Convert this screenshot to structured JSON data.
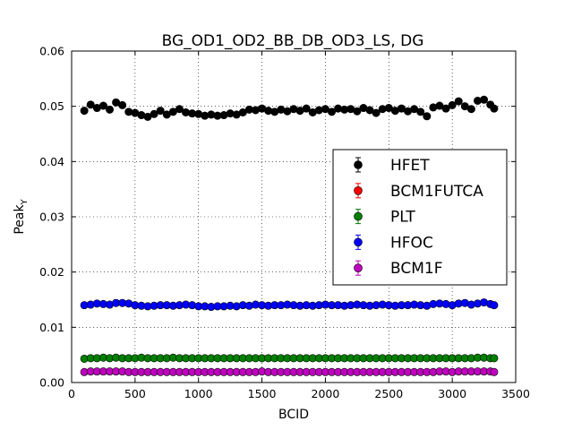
{
  "chart_data": {
    "type": "scatter",
    "title": "BG_OD1_OD2_BB_DB_OD3_LS, DG",
    "xlabel": "BCID",
    "ylabel": "Peak",
    "ylabel_subscript": "Y",
    "xlim": [
      0,
      3500
    ],
    "ylim": [
      0,
      0.06
    ],
    "xticks": [
      "0",
      "500",
      "1000",
      "1500",
      "2000",
      "2500",
      "3000",
      "3500"
    ],
    "xtick_values": [
      0,
      500,
      1000,
      1500,
      2000,
      2500,
      3000,
      3500
    ],
    "yticks": [
      "0.00",
      "0.01",
      "0.02",
      "0.03",
      "0.04",
      "0.05",
      "0.06"
    ],
    "ytick_values": [
      0,
      0.01,
      0.02,
      0.03,
      0.04,
      0.05,
      0.06
    ],
    "grid": true,
    "legend_position": "center-right",
    "x": [
      100,
      150,
      200,
      250,
      300,
      350,
      400,
      450,
      500,
      550,
      600,
      650,
      700,
      750,
      800,
      850,
      900,
      950,
      1000,
      1050,
      1100,
      1150,
      1200,
      1250,
      1300,
      1350,
      1400,
      1450,
      1500,
      1550,
      1600,
      1650,
      1700,
      1750,
      1800,
      1850,
      1900,
      1950,
      2000,
      2050,
      2100,
      2150,
      2200,
      2250,
      2300,
      2350,
      2400,
      2450,
      2500,
      2550,
      2600,
      2650,
      2700,
      2750,
      2800,
      2850,
      2900,
      2950,
      3000,
      3050,
      3100,
      3150,
      3200,
      3250,
      3300,
      3330
    ],
    "series": [
      {
        "name": "HFET",
        "color": "#000000",
        "values": [
          0.0492,
          0.0503,
          0.0497,
          0.0501,
          0.0494,
          0.0507,
          0.0502,
          0.049,
          0.0488,
          0.0484,
          0.0481,
          0.0486,
          0.0492,
          0.0485,
          0.049,
          0.0495,
          0.0489,
          0.0487,
          0.0486,
          0.0483,
          0.0485,
          0.0483,
          0.0484,
          0.0487,
          0.0485,
          0.0489,
          0.0494,
          0.0493,
          0.0496,
          0.0492,
          0.049,
          0.0494,
          0.0491,
          0.0495,
          0.0492,
          0.0496,
          0.0489,
          0.0493,
          0.0495,
          0.049,
          0.0496,
          0.0494,
          0.0495,
          0.0491,
          0.0497,
          0.0493,
          0.0488,
          0.0495,
          0.0497,
          0.0492,
          0.0496,
          0.0491,
          0.0495,
          0.049,
          0.0482,
          0.0498,
          0.0501,
          0.0496,
          0.0502,
          0.0509,
          0.05,
          0.0495,
          0.051,
          0.0512,
          0.0503,
          0.0496
        ]
      },
      {
        "name": "BCM1FUTCA",
        "color": "#ff0000",
        "values": []
      },
      {
        "name": "PLT",
        "color": "#008000",
        "values": [
          0.0043,
          0.0044,
          0.0044,
          0.0045,
          0.0044,
          0.0045,
          0.0044,
          0.0044,
          0.0044,
          0.0045,
          0.0044,
          0.0044,
          0.0044,
          0.0044,
          0.0045,
          0.0044,
          0.0044,
          0.0044,
          0.0044,
          0.0044,
          0.0044,
          0.0044,
          0.0044,
          0.0044,
          0.0044,
          0.0044,
          0.0044,
          0.0044,
          0.0044,
          0.0044,
          0.0044,
          0.0044,
          0.0044,
          0.0044,
          0.0044,
          0.0044,
          0.0044,
          0.0044,
          0.0044,
          0.0044,
          0.0044,
          0.0044,
          0.0044,
          0.0044,
          0.0044,
          0.0044,
          0.0044,
          0.0044,
          0.0044,
          0.0044,
          0.0044,
          0.0044,
          0.0044,
          0.0044,
          0.0044,
          0.0044,
          0.0044,
          0.0044,
          0.0044,
          0.0044,
          0.0044,
          0.0044,
          0.0045,
          0.0045,
          0.0044,
          0.0044
        ]
      },
      {
        "name": "HFOC",
        "color": "#0000ff",
        "values": [
          0.014,
          0.0141,
          0.0143,
          0.0142,
          0.0141,
          0.0144,
          0.0144,
          0.0143,
          0.014,
          0.0139,
          0.0138,
          0.0139,
          0.014,
          0.014,
          0.0139,
          0.014,
          0.0141,
          0.014,
          0.0138,
          0.0138,
          0.0137,
          0.0138,
          0.0138,
          0.0139,
          0.0138,
          0.014,
          0.0139,
          0.0141,
          0.014,
          0.0139,
          0.014,
          0.014,
          0.0141,
          0.014,
          0.0139,
          0.014,
          0.0139,
          0.014,
          0.0141,
          0.014,
          0.014,
          0.0139,
          0.014,
          0.0141,
          0.014,
          0.0139,
          0.014,
          0.0141,
          0.014,
          0.0139,
          0.014,
          0.014,
          0.0141,
          0.014,
          0.0139,
          0.0142,
          0.0143,
          0.0142,
          0.014,
          0.0143,
          0.0144,
          0.0141,
          0.0143,
          0.0145,
          0.0142,
          0.014
        ]
      },
      {
        "name": "BCM1F",
        "color": "#bf00bf",
        "values": [
          0.0019,
          0.002,
          0.002,
          0.002,
          0.002,
          0.002,
          0.002,
          0.0019,
          0.0019,
          0.0019,
          0.0019,
          0.0019,
          0.0019,
          0.0019,
          0.0019,
          0.0019,
          0.0019,
          0.0019,
          0.0019,
          0.0019,
          0.0019,
          0.0019,
          0.0019,
          0.0019,
          0.0019,
          0.0019,
          0.0019,
          0.0019,
          0.002,
          0.0019,
          0.0019,
          0.0019,
          0.0019,
          0.0019,
          0.0019,
          0.0019,
          0.0019,
          0.0019,
          0.0019,
          0.0019,
          0.0019,
          0.0019,
          0.0019,
          0.0019,
          0.0019,
          0.0019,
          0.0019,
          0.0019,
          0.0019,
          0.0019,
          0.0019,
          0.0019,
          0.0019,
          0.0019,
          0.0019,
          0.0019,
          0.002,
          0.002,
          0.0019,
          0.002,
          0.002,
          0.002,
          0.002,
          0.002,
          0.002,
          0.0019
        ]
      }
    ]
  }
}
